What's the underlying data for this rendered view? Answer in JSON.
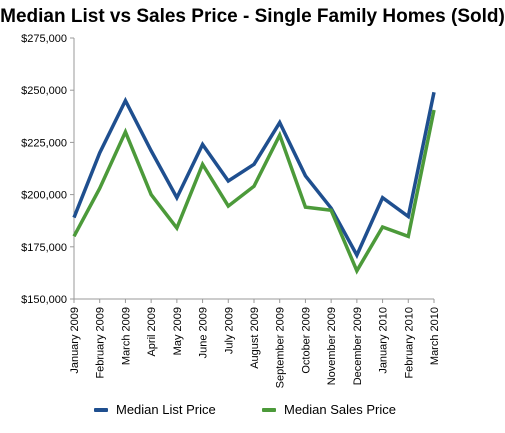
{
  "chart_data": {
    "type": "line",
    "title": "Median List vs Sales Price - Single Family Homes (Sold)",
    "categories": [
      "January 2009",
      "February 2009",
      "March 2009",
      "April 2009",
      "May 2009",
      "June 2009",
      "July 2009",
      "August 2009",
      "September 2009",
      "October 2009",
      "November 2009",
      "December 2009",
      "January 2010",
      "February 2010",
      "March 2010"
    ],
    "series": [
      {
        "name": "Median List Price",
        "color": "#1f4f8f",
        "values": [
          189000,
          220000,
          245000,
          221000,
          198500,
          224000,
          206500,
          214500,
          234500,
          209000,
          193500,
          171000,
          198500,
          189500,
          249000
        ]
      },
      {
        "name": "Median Sales Price",
        "color": "#4c9a3a",
        "values": [
          180000,
          203000,
          230000,
          200000,
          184000,
          214500,
          194500,
          204000,
          228500,
          194000,
          192500,
          163500,
          184500,
          180000,
          240500
        ]
      }
    ],
    "ylim": [
      150000,
      275000
    ],
    "yticks": [
      150000,
      175000,
      200000,
      225000,
      250000,
      275000
    ],
    "ytick_labels": [
      "$150,000",
      "$175,000",
      "$200,000",
      "$225,000",
      "$250,000",
      "$275,000"
    ],
    "grid": false,
    "legend_position": "bottom"
  }
}
